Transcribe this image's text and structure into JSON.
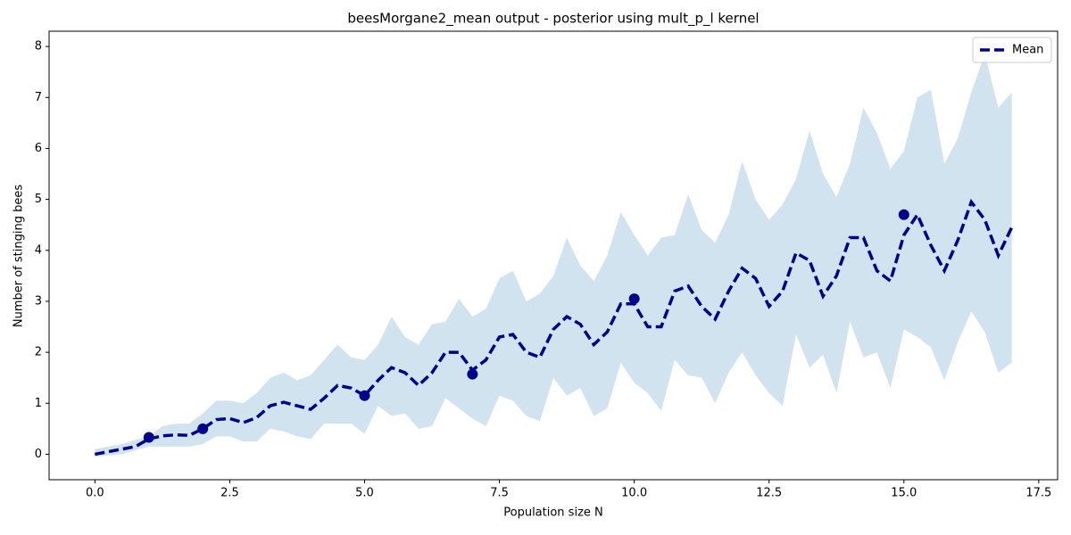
{
  "chart_data": {
    "type": "line",
    "title": "beesMorgane2_mean output - posterior using mult_p_l kernel",
    "xlabel": "Population size N",
    "ylabel": "Number of stinging bees",
    "x": [
      0,
      0.25,
      0.5,
      0.75,
      1,
      1.25,
      1.5,
      1.75,
      2,
      2.25,
      2.5,
      2.75,
      3,
      3.25,
      3.5,
      3.75,
      4,
      4.25,
      4.5,
      4.75,
      5,
      5.25,
      5.5,
      5.75,
      6,
      6.25,
      6.5,
      6.75,
      7,
      7.25,
      7.5,
      7.75,
      8,
      8.25,
      8.5,
      8.75,
      9,
      9.25,
      9.5,
      9.75,
      10,
      10.25,
      10.5,
      10.75,
      11,
      11.25,
      11.5,
      11.75,
      12,
      12.25,
      12.5,
      12.75,
      13,
      13.25,
      13.5,
      13.75,
      14,
      14.25,
      14.5,
      14.75,
      15,
      15.25,
      15.5,
      15.75,
      16,
      16.25,
      16.5,
      16.75,
      17
    ],
    "series": [
      {
        "name": "Mean",
        "color": "#00008b",
        "dashed": true,
        "values": [
          0,
          0.05,
          0.1,
          0.15,
          0.3,
          0.36,
          0.38,
          0.37,
          0.5,
          0.68,
          0.7,
          0.62,
          0.72,
          0.95,
          1.02,
          0.95,
          0.88,
          1.1,
          1.35,
          1.3,
          1.15,
          1.45,
          1.7,
          1.6,
          1.35,
          1.6,
          2.0,
          2.0,
          1.65,
          1.85,
          2.3,
          2.35,
          2.0,
          1.9,
          2.45,
          2.7,
          2.55,
          2.15,
          2.4,
          2.95,
          2.95,
          2.5,
          2.5,
          3.2,
          3.3,
          2.9,
          2.65,
          3.2,
          3.65,
          3.45,
          2.9,
          3.2,
          3.95,
          3.8,
          3.1,
          3.5,
          4.25,
          4.25,
          3.6,
          3.4,
          4.3,
          4.7,
          4.1,
          3.6,
          4.2,
          4.95,
          4.6,
          3.9,
          4.45
        ]
      }
    ],
    "band": {
      "color": "#d2e3f0",
      "lower": [
        -0.05,
        -0.02,
        0,
        0.08,
        0.15,
        0.15,
        0.15,
        0.15,
        0.2,
        0.35,
        0.35,
        0.25,
        0.25,
        0.5,
        0.45,
        0.35,
        0.3,
        0.6,
        0.6,
        0.6,
        0.4,
        0.95,
        0.75,
        0.8,
        0.5,
        0.55,
        1.1,
        0.9,
        0.7,
        0.55,
        1.15,
        1.05,
        0.75,
        0.65,
        1.5,
        1.15,
        1.3,
        0.75,
        0.9,
        1.8,
        1.4,
        1.2,
        0.85,
        1.85,
        1.55,
        1.5,
        1.0,
        1.6,
        2.0,
        1.55,
        1.2,
        0.95,
        2.35,
        1.7,
        1.95,
        1.2,
        2.6,
        1.9,
        2.0,
        1.3,
        2.45,
        2.3,
        2.1,
        1.45,
        2.2,
        2.8,
        2.4,
        1.6,
        1.8
      ],
      "upper": [
        0.1,
        0.15,
        0.2,
        0.28,
        0.35,
        0.55,
        0.6,
        0.6,
        0.8,
        1.05,
        1.05,
        1.0,
        1.2,
        1.5,
        1.6,
        1.45,
        1.55,
        1.85,
        2.15,
        1.9,
        1.85,
        2.15,
        2.7,
        2.3,
        2.15,
        2.55,
        2.6,
        3.05,
        2.7,
        2.85,
        3.45,
        3.6,
        3.0,
        3.15,
        3.5,
        4.25,
        3.7,
        3.4,
        3.9,
        4.75,
        4.3,
        3.9,
        4.25,
        4.3,
        5.1,
        4.4,
        4.15,
        4.7,
        5.75,
        5.0,
        4.6,
        4.9,
        5.4,
        6.35,
        5.5,
        5.05,
        5.7,
        6.8,
        6.3,
        5.6,
        5.95,
        7.0,
        7.15,
        5.7,
        6.2,
        7.1,
        7.85,
        6.8,
        7.1
      ]
    },
    "points": {
      "color": "#00008b",
      "x": [
        1,
        2,
        5,
        7,
        10,
        15
      ],
      "values": [
        0.33,
        0.5,
        1.15,
        1.57,
        3.05,
        4.7
      ]
    },
    "xlim": [
      -0.85,
      17.85
    ],
    "ylim": [
      -0.5,
      8.3
    ],
    "xticks": [
      {
        "value": 0,
        "label": "0.0"
      },
      {
        "value": 2.5,
        "label": "2.5"
      },
      {
        "value": 5,
        "label": "5.0"
      },
      {
        "value": 7.5,
        "label": "7.5"
      },
      {
        "value": 10,
        "label": "10.0"
      },
      {
        "value": 12.5,
        "label": "12.5"
      },
      {
        "value": 15,
        "label": "15.0"
      },
      {
        "value": 17.5,
        "label": "17.5"
      }
    ],
    "yticks": [
      0,
      1,
      2,
      3,
      4,
      5,
      6,
      7,
      8
    ],
    "legend": "upper right"
  }
}
